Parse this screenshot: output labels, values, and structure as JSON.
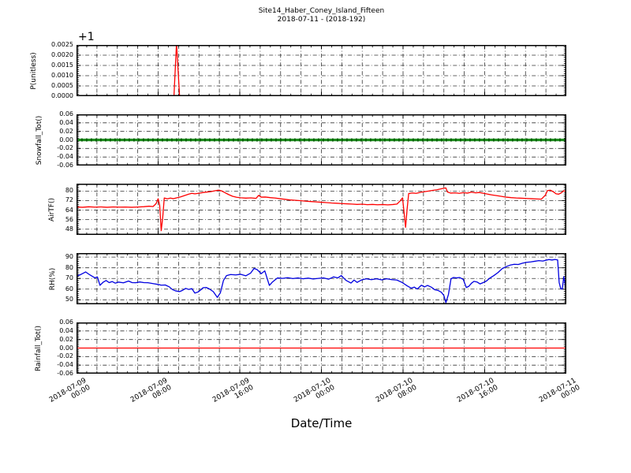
{
  "title": {
    "line1": "Site14_Haber_Coney_Island_Fifteen",
    "line2": "2018-07-11 - (2018-192)"
  },
  "x_axis": {
    "label": "Date/Time",
    "range_hours": [
      0,
      48
    ],
    "major_tick_hours": [
      0,
      8,
      16,
      24,
      32,
      40,
      48
    ],
    "tick_labels": [
      [
        "2018-07-09",
        "00:00"
      ],
      [
        "2018-07-09",
        "08:00"
      ],
      [
        "2018-07-09",
        "16:00"
      ],
      [
        "2018-07-10",
        "00:00"
      ],
      [
        "2018-07-10",
        "08:00"
      ],
      [
        "2018-07-10",
        "16:00"
      ],
      [
        "2018-07-11",
        "00:00"
      ]
    ],
    "minor_tick_hours": 1,
    "grid_hours": 2
  },
  "grid": {
    "style": "dash-dot",
    "color": "#333333"
  },
  "chart_data": [
    {
      "type": "line",
      "key": "p-unitless",
      "ylabel": "P(unitless)",
      "offset_text": "+1",
      "color": "#ff0000",
      "line_width": 1.3,
      "yrange": [
        1.0,
        1.0025
      ],
      "ytick_values": [
        1.0,
        1.0005,
        1.001,
        1.0015,
        1.002,
        1.0025
      ],
      "ytick_labels": [
        "0.0000",
        "0.0005",
        "0.0010",
        "0.0015",
        "0.0020",
        "0.0025"
      ],
      "ylabel_x": 43,
      "points": [
        [
          0,
          1.0
        ],
        [
          9.55,
          1.0
        ],
        [
          9.8,
          1.0026
        ],
        [
          10.1,
          1.0
        ],
        [
          48,
          1.0
        ]
      ]
    },
    {
      "type": "line",
      "key": "snowfall-tot",
      "ylabel": "Snowfall_Tot()",
      "color": "#1c8c1c",
      "marker_color": "#0a5c0a",
      "line_width": 3.2,
      "yrange": [
        -0.06,
        0.06
      ],
      "ytick_values": [
        -0.06,
        -0.04,
        -0.02,
        0.0,
        0.02,
        0.04,
        0.06
      ],
      "ytick_labels": [
        "-0.06",
        "-0.04",
        "-0.02",
        "0.00",
        "0.02",
        "0.04",
        "0.06"
      ],
      "ylabel_x": 50,
      "points": [
        [
          0,
          0.0
        ],
        [
          48,
          0.0
        ]
      ]
    },
    {
      "type": "line",
      "key": "airtf",
      "ylabel": "AirTF()",
      "color": "#ff0000",
      "line_width": 1.3,
      "yrange": [
        43.2,
        86.2
      ],
      "ytick_values": [
        48,
        56,
        64,
        72,
        80
      ],
      "ytick_labels": [
        "48",
        "56",
        "64",
        "72",
        "80"
      ],
      "ylabel_x": 66,
      "points": [
        [
          0,
          66.6
        ],
        [
          0.6,
          66.4
        ],
        [
          1.2,
          66.8
        ],
        [
          1.8,
          66.5
        ],
        [
          2.4,
          66.7
        ],
        [
          3,
          66.4
        ],
        [
          3.6,
          66.7
        ],
        [
          4.2,
          66.5
        ],
        [
          4.8,
          66.6
        ],
        [
          5.4,
          66.4
        ],
        [
          6,
          66.6
        ],
        [
          6.6,
          66.9
        ],
        [
          7.1,
          67.3
        ],
        [
          7.5,
          67.0
        ],
        [
          7.8,
          69.5
        ],
        [
          8.0,
          73.6
        ],
        [
          8.15,
          68.0
        ],
        [
          8.3,
          46.8
        ],
        [
          8.45,
          58.0
        ],
        [
          8.6,
          74.2
        ],
        [
          8.9,
          73.5
        ],
        [
          9.2,
          74.1
        ],
        [
          9.5,
          73.6
        ],
        [
          9.8,
          74.3
        ],
        [
          10.2,
          75.1
        ],
        [
          10.6,
          76.3
        ],
        [
          11,
          77.4
        ],
        [
          11.3,
          78.1
        ],
        [
          11.6,
          77.7
        ],
        [
          12,
          78.2
        ],
        [
          12.4,
          78.8
        ],
        [
          12.8,
          79.2
        ],
        [
          13.2,
          79.6
        ],
        [
          13.6,
          80.3
        ],
        [
          13.9,
          80.7
        ],
        [
          14.2,
          80.2
        ],
        [
          14.5,
          78.9
        ],
        [
          14.9,
          77.1
        ],
        [
          15.3,
          75.6
        ],
        [
          15.7,
          74.8
        ],
        [
          16.1,
          74.4
        ],
        [
          16.6,
          74.1
        ],
        [
          17.1,
          74.3
        ],
        [
          17.6,
          73.9
        ],
        [
          17.85,
          76.4
        ],
        [
          18.1,
          74.9
        ],
        [
          18.5,
          75.0
        ],
        [
          19,
          74.5
        ],
        [
          19.5,
          74.1
        ],
        [
          20,
          73.5
        ],
        [
          20.5,
          73.0
        ],
        [
          21,
          72.5
        ],
        [
          21.5,
          72.2
        ],
        [
          22,
          71.9
        ],
        [
          22.5,
          71.5
        ],
        [
          23,
          71.2
        ],
        [
          23.5,
          70.9
        ],
        [
          24,
          70.6
        ],
        [
          24.5,
          70.3
        ],
        [
          25,
          70.0
        ],
        [
          25.5,
          69.8
        ],
        [
          26,
          69.5
        ],
        [
          26.5,
          69.3
        ],
        [
          27,
          69.1
        ],
        [
          27.5,
          68.8
        ],
        [
          28,
          69.0
        ],
        [
          28.5,
          68.6
        ],
        [
          29,
          68.8
        ],
        [
          29.5,
          68.5
        ],
        [
          30,
          68.7
        ],
        [
          30.5,
          68.4
        ],
        [
          31,
          68.7
        ],
        [
          31.4,
          69.1
        ],
        [
          31.7,
          71.6
        ],
        [
          31.95,
          74.3
        ],
        [
          32.1,
          62.0
        ],
        [
          32.25,
          49.6
        ],
        [
          32.4,
          65.0
        ],
        [
          32.55,
          77.9
        ],
        [
          32.9,
          78.4
        ],
        [
          33.3,
          78.1
        ],
        [
          33.7,
          78.9
        ],
        [
          34.1,
          79.5
        ],
        [
          34.5,
          80.0
        ],
        [
          34.9,
          80.6
        ],
        [
          35.3,
          81.1
        ],
        [
          35.7,
          81.8
        ],
        [
          36.0,
          82.4
        ],
        [
          36.2,
          82.6
        ],
        [
          36.35,
          79.2
        ],
        [
          36.7,
          78.3
        ],
        [
          37.1,
          78.5
        ],
        [
          37.5,
          78.1
        ],
        [
          37.9,
          78.7
        ],
        [
          38.3,
          78.3
        ],
        [
          38.7,
          79.1
        ],
        [
          39.1,
          78.5
        ],
        [
          39.5,
          78.8
        ],
        [
          39.9,
          78.1
        ],
        [
          40.3,
          77.4
        ],
        [
          40.7,
          76.8
        ],
        [
          41.1,
          76.3
        ],
        [
          41.6,
          75.6
        ],
        [
          42.1,
          74.9
        ],
        [
          42.6,
          74.5
        ],
        [
          43.1,
          74.2
        ],
        [
          43.6,
          74.0
        ],
        [
          44.1,
          73.8
        ],
        [
          44.6,
          73.6
        ],
        [
          45.1,
          73.4
        ],
        [
          45.55,
          73.2
        ],
        [
          45.95,
          76.6
        ],
        [
          46.15,
          80.4
        ],
        [
          46.45,
          80.7
        ],
        [
          46.75,
          79.3
        ],
        [
          47.0,
          77.7
        ],
        [
          47.25,
          77.4
        ],
        [
          47.5,
          78.5
        ],
        [
          47.75,
          80.3
        ],
        [
          47.9,
          79.7
        ],
        [
          48,
          77.9
        ]
      ]
    },
    {
      "type": "line",
      "key": "rh",
      "ylabel": "RH(%)",
      "color": "#0000e0",
      "line_width": 1.3,
      "yrange": [
        45.8,
        93.8
      ],
      "ytick_values": [
        50,
        60,
        70,
        80,
        90
      ],
      "ytick_labels": [
        "50",
        "60",
        "70",
        "80",
        "90"
      ],
      "ylabel_x": 67,
      "points": [
        [
          0,
          72.2
        ],
        [
          0.4,
          73.6
        ],
        [
          0.9,
          76.1
        ],
        [
          1.3,
          73.4
        ],
        [
          1.8,
          70.6
        ],
        [
          2.05,
          71.4
        ],
        [
          2.3,
          63.6
        ],
        [
          2.6,
          66.4
        ],
        [
          2.9,
          68.1
        ],
        [
          3.2,
          66.1
        ],
        [
          3.5,
          67.1
        ],
        [
          3.8,
          65.6
        ],
        [
          4.1,
          66.6
        ],
        [
          4.6,
          65.9
        ],
        [
          5.1,
          67.6
        ],
        [
          5.45,
          66.1
        ],
        [
          5.8,
          66.0
        ],
        [
          6.2,
          66.7
        ],
        [
          6.6,
          66.1
        ],
        [
          7,
          66.0
        ],
        [
          7.5,
          65.2
        ],
        [
          8,
          64.4
        ],
        [
          8.3,
          63.7
        ],
        [
          8.7,
          63.9
        ],
        [
          9.1,
          62.1
        ],
        [
          9.4,
          59.6
        ],
        [
          9.7,
          58.4
        ],
        [
          10.1,
          57.7
        ],
        [
          10.4,
          58.9
        ],
        [
          10.7,
          60.7
        ],
        [
          11,
          59.7
        ],
        [
          11.3,
          60.5
        ],
        [
          11.6,
          56.3
        ],
        [
          11.9,
          57.3
        ],
        [
          12.15,
          59.1
        ],
        [
          12.4,
          61.3
        ],
        [
          12.7,
          61.6
        ],
        [
          13,
          60.3
        ],
        [
          13.4,
          57.7
        ],
        [
          13.8,
          52.3
        ],
        [
          14.1,
          56.6
        ],
        [
          14.4,
          68.1
        ],
        [
          14.7,
          72.7
        ],
        [
          15.1,
          73.7
        ],
        [
          15.6,
          73.3
        ],
        [
          16.1,
          73.9
        ],
        [
          16.6,
          72.5
        ],
        [
          17.05,
          74.9
        ],
        [
          17.4,
          79.4
        ],
        [
          17.7,
          78.3
        ],
        [
          18.1,
          74.5
        ],
        [
          18.45,
          77.1
        ],
        [
          18.9,
          63.5
        ],
        [
          19.2,
          66.7
        ],
        [
          19.7,
          70.5
        ],
        [
          20.2,
          70.1
        ],
        [
          20.7,
          70.7
        ],
        [
          21.2,
          69.9
        ],
        [
          21.7,
          70.5
        ],
        [
          22.2,
          69.7
        ],
        [
          22.7,
          70.3
        ],
        [
          23.2,
          69.5
        ],
        [
          23.7,
          70.1
        ],
        [
          24.2,
          70.5
        ],
        [
          24.7,
          69.3
        ],
        [
          25.2,
          71.5
        ],
        [
          25.6,
          70.5
        ],
        [
          25.95,
          72.7
        ],
        [
          26.4,
          68.3
        ],
        [
          26.9,
          65.7
        ],
        [
          27.2,
          68.5
        ],
        [
          27.5,
          66.3
        ],
        [
          27.9,
          68.5
        ],
        [
          28.4,
          69.7
        ],
        [
          28.9,
          68.9
        ],
        [
          29.4,
          69.7
        ],
        [
          29.9,
          68.7
        ],
        [
          30.4,
          69.7
        ],
        [
          30.9,
          68.9
        ],
        [
          31.4,
          68.5
        ],
        [
          31.9,
          66.3
        ],
        [
          32.4,
          63.1
        ],
        [
          32.8,
          60.9
        ],
        [
          33.1,
          61.9
        ],
        [
          33.4,
          60.1
        ],
        [
          33.8,
          63.7
        ],
        [
          34.1,
          62.1
        ],
        [
          34.4,
          63.5
        ],
        [
          34.8,
          61.7
        ],
        [
          35.1,
          59.5
        ],
        [
          35.45,
          58.7
        ],
        [
          35.75,
          57.1
        ],
        [
          36.0,
          54.0
        ],
        [
          36.2,
          47.3
        ],
        [
          36.45,
          55.1
        ],
        [
          36.7,
          69.7
        ],
        [
          36.95,
          70.9
        ],
        [
          37.25,
          70.5
        ],
        [
          37.55,
          70.9
        ],
        [
          37.9,
          69.1
        ],
        [
          38.2,
          61.5
        ],
        [
          38.45,
          62.7
        ],
        [
          38.7,
          65.5
        ],
        [
          38.95,
          67.3
        ],
        [
          39.25,
          66.7
        ],
        [
          39.55,
          64.9
        ],
        [
          39.85,
          66.1
        ],
        [
          40.15,
          67.5
        ],
        [
          40.5,
          70.3
        ],
        [
          40.9,
          72.7
        ],
        [
          41.3,
          75.5
        ],
        [
          41.7,
          79.1
        ],
        [
          42.1,
          81.1
        ],
        [
          42.5,
          82.5
        ],
        [
          42.9,
          83.3
        ],
        [
          43.3,
          83.1
        ],
        [
          43.7,
          84.3
        ],
        [
          44.1,
          85.1
        ],
        [
          44.5,
          85.5
        ],
        [
          44.9,
          86.1
        ],
        [
          45.3,
          86.7
        ],
        [
          45.7,
          86.3
        ],
        [
          46.0,
          87.1
        ],
        [
          46.3,
          87.7
        ],
        [
          46.6,
          87.3
        ],
        [
          46.9,
          87.8
        ],
        [
          47.15,
          87.3
        ],
        [
          47.3,
          66.1
        ],
        [
          47.45,
          60.5
        ],
        [
          47.6,
          60.1
        ],
        [
          47.75,
          71.7
        ],
        [
          47.9,
          63.1
        ],
        [
          48,
          57.6
        ]
      ]
    },
    {
      "type": "line",
      "key": "rainfall-tot",
      "ylabel": "Rainfall_Tot()",
      "color": "#ff0000",
      "line_width": 1.2,
      "yrange": [
        -0.06,
        0.06
      ],
      "ytick_values": [
        -0.06,
        -0.04,
        -0.02,
        0.0,
        0.02,
        0.04,
        0.06
      ],
      "ytick_labels": [
        "-0.06",
        "-0.04",
        "-0.02",
        "0.00",
        "0.02",
        "0.04",
        "0.06"
      ],
      "ylabel_x": 49,
      "points": [
        [
          0,
          0.0
        ],
        [
          48,
          0.0
        ]
      ]
    }
  ]
}
